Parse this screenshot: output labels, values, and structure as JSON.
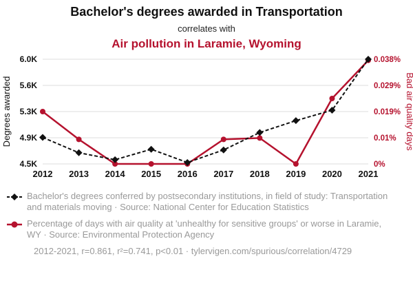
{
  "header": {
    "title": "Bachelor's degrees awarded in Transportation",
    "subtitle": "correlates with",
    "secondary_title": "Air pollution in Laramie, Wyoming"
  },
  "colors": {
    "accent_red": "#b5122e",
    "series_black": "#111111",
    "grid": "#dddddd",
    "legend_gray": "#999999"
  },
  "chart_data": {
    "type": "line",
    "x": [
      2012,
      2013,
      2014,
      2015,
      2016,
      2017,
      2018,
      2019,
      2020,
      2021
    ],
    "x_tick_labels": [
      "2012",
      "2013",
      "2014",
      "2015",
      "2016",
      "2017",
      "2018",
      "2019",
      "2020",
      "2021"
    ],
    "series": [
      {
        "name": "Bachelor's degrees conferred: Transportation and materials moving",
        "axis": "left",
        "style": "dashed",
        "marker": "diamond",
        "values": [
          4880,
          4660,
          4560,
          4710,
          4520,
          4700,
          4950,
          5120,
          5270,
          6000
        ]
      },
      {
        "name": "Percentage of days with bad air quality in Laramie, WY",
        "axis": "right",
        "style": "solid",
        "marker": "circle",
        "values": [
          0.0192,
          0.009,
          0.0,
          0.0,
          0.0,
          0.009,
          0.0095,
          0.0,
          0.024,
          0.038
        ]
      }
    ],
    "left_axis": {
      "label": "Degrees awarded",
      "range": [
        4500,
        6000
      ],
      "ticks": [
        4500,
        4875,
        5250,
        5625,
        6000
      ],
      "tick_labels": [
        "4.5K",
        "4.9K",
        "5.3K",
        "5.6K",
        "6.0K"
      ]
    },
    "right_axis": {
      "label": "Bad air quality days",
      "range": [
        0,
        0.0384
      ],
      "ticks": [
        0,
        0.0096,
        0.0192,
        0.0288,
        0.0384
      ],
      "tick_labels": [
        "0%",
        "0.01%",
        "0.019%",
        "0.029%",
        "0.038%"
      ]
    },
    "grid": true,
    "legend_position": "bottom"
  },
  "legend": {
    "items": [
      {
        "marker": "black-diamond-dashed",
        "text": "Bachelor's degrees conferred by postsecondary institutions, in field of study: Transportation and materials moving · Source: National Center for Education Statistics"
      },
      {
        "marker": "red-circle-line",
        "text": "Percentage of days with air quality at 'unhealthy for sensitive groups' or worse in Laramie, WY · Source: Environmental Protection Agency"
      }
    ],
    "footer": "2012-2021, r=0.861, r²=0.741, p<0.01 · tylervigen.com/spurious/correlation/4729"
  }
}
